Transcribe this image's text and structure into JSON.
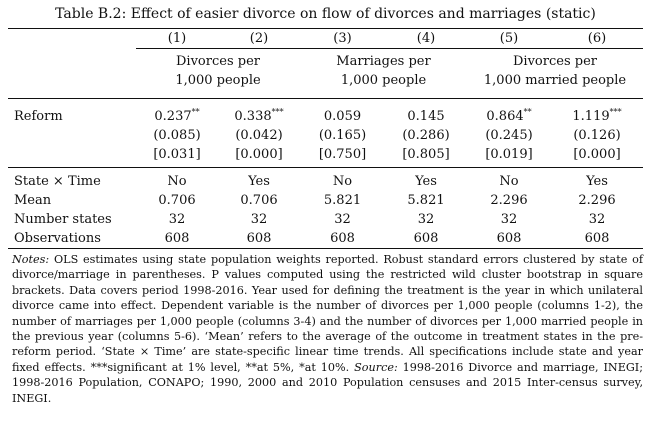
{
  "caption": "Table B.2: Effect of easier divorce on flow of divorces and marriages (static)",
  "columns": [
    "(1)",
    "(2)",
    "(3)",
    "(4)",
    "(5)",
    "(6)"
  ],
  "groups": [
    {
      "line1": "Divorces per",
      "line2": "1,000 people"
    },
    {
      "line1": "Marriages per",
      "line2": "1,000 people"
    },
    {
      "line1": "Divorces per",
      "line2": "1,000 married people"
    }
  ],
  "reform": {
    "label": "Reform",
    "coef": [
      {
        "value": "0.237",
        "stars": "**"
      },
      {
        "value": "0.338",
        "stars": "***"
      },
      {
        "value": "0.059",
        "stars": ""
      },
      {
        "value": "0.145",
        "stars": ""
      },
      {
        "value": "0.864",
        "stars": "**"
      },
      {
        "value": "1.119",
        "stars": "***"
      }
    ],
    "se": [
      "(0.085)",
      "(0.042)",
      "(0.165)",
      "(0.286)",
      "(0.245)",
      "(0.126)"
    ],
    "pval": [
      "[0.031]",
      "[0.000]",
      "[0.750]",
      "[0.805]",
      "[0.019]",
      "[0.000]"
    ]
  },
  "stats": [
    {
      "label": "State × Time",
      "values": [
        "No",
        "Yes",
        "No",
        "Yes",
        "No",
        "Yes"
      ]
    },
    {
      "label": "Mean",
      "values": [
        "0.706",
        "0.706",
        "5.821",
        "5.821",
        "2.296",
        "2.296"
      ]
    },
    {
      "label": "Number states",
      "values": [
        "32",
        "32",
        "32",
        "32",
        "32",
        "32"
      ]
    },
    {
      "label": "Observations",
      "values": [
        "608",
        "608",
        "608",
        "608",
        "608",
        "608"
      ]
    }
  ],
  "notes": {
    "notes_label": "Notes:",
    "notes_text": " OLS estimates using state population weights reported. Robust standard errors clustered by state of divorce/marriage in parentheses. P values computed using the restricted wild cluster bootstrap in square brackets. Data covers period 1998-2016. Year used for defining the treatment is the year in which unilateral divorce came into effect. Dependent variable is the number of divorces per 1,000 people (columns 1-2), the number of marriages per 1,000 people (columns 3-4) and the number of divorces per 1,000 married people in the previous year (columns 5-6). ‘Mean’ refers to the average of the outcome in treatment states in the pre-reform period. ‘State × Time’ are state-specific linear time trends. All specifications include state and year fixed effects. ***significant at 1% level, **at 5%, *at 10%. ",
    "source_label": "Source:",
    "source_text": " 1998-2016 Divorce and marriage, INEGI; 1998-2016 Population, CONAPO; 1990, 2000 and 2010 Population censuses and 2015 Inter-census survey, INEGI."
  }
}
